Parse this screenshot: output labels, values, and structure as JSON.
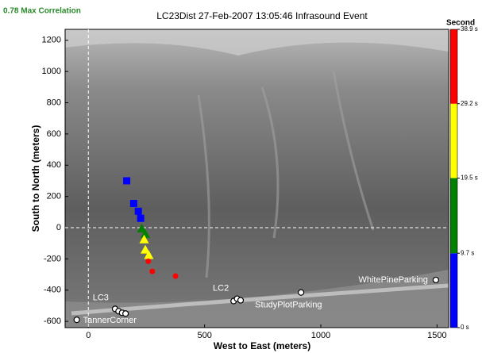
{
  "chart_data": {
    "type": "scatter",
    "title": "LC23Dist 27-Feb-2007 13:05:46 Infrasound Event",
    "subtitle": "0.78 Max Correlation",
    "x_label": "West to East (meters)",
    "y_label": "South to North (meters)",
    "xlim": [
      -100,
      1550
    ],
    "ylim": [
      -640,
      1270
    ],
    "xticks": [
      0,
      500,
      1000,
      1500
    ],
    "yticks": [
      -600,
      -400,
      -200,
      0,
      200,
      400,
      600,
      800,
      1000,
      1200
    ],
    "series": [
      {
        "color": "#0000ff",
        "marker": "square",
        "x": [
          165,
          195,
          215,
          225
        ],
        "values": [
          300,
          155,
          105,
          60
        ]
      },
      {
        "color": "#008000",
        "marker": "triangle",
        "x": [
          230,
          245
        ],
        "values": [
          -5,
          -40
        ]
      },
      {
        "color": "#ffff00",
        "marker": "triangle",
        "x": [
          240,
          245,
          260
        ],
        "values": [
          -75,
          -140,
          -175
        ]
      },
      {
        "color": "#ff0000",
        "marker": "circle",
        "x": [
          258,
          275,
          375
        ],
        "values": [
          -215,
          -280,
          -310
        ]
      }
    ],
    "stations": {
      "x": [
        -50,
        115,
        130,
        145,
        160,
        625,
        640,
        655,
        915,
        1495
      ],
      "y": [
        -590,
        -520,
        -535,
        -545,
        -550,
        -470,
        -455,
        -465,
        -415,
        -335
      ],
      "labels": [
        "TannerCorner",
        "LC3",
        null,
        null,
        null,
        "LC2",
        null,
        null,
        "StudyPlotParking",
        "WhitePineParking"
      ]
    },
    "colorbar": {
      "title": "Second",
      "lim": [
        0,
        38.9
      ],
      "ticks": [
        {
          "value": 38.9,
          "label": "38.9 s"
        },
        {
          "value": 29.2,
          "label": "29.2 s"
        },
        {
          "value": 19.5,
          "label": "19.5 s"
        },
        {
          "value": 9.7,
          "label": "9.7 s"
        },
        {
          "value": 0,
          "label": "0 s"
        }
      ],
      "colors": [
        "#0000ff",
        "#008000",
        "#ffff00",
        "#ff0000"
      ]
    }
  }
}
